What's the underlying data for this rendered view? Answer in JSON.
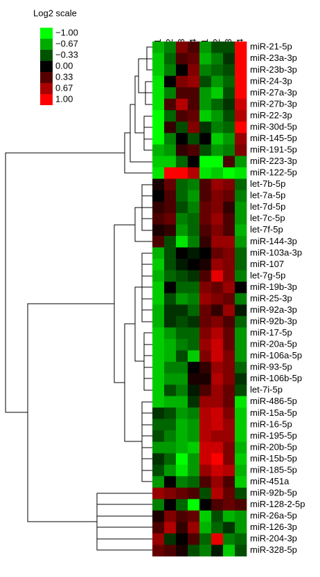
{
  "chart_data": {
    "type": "heatmap",
    "legend_title": "Log2 scale",
    "colorbar_ticks": [
      {
        "value": -1,
        "label": "−1.00"
      },
      {
        "value": -0.67,
        "label": "−0.67"
      },
      {
        "value": -0.33,
        "label": "−0.33"
      },
      {
        "value": 0,
        "label": "0.00"
      },
      {
        "value": 0.33,
        "label": "0.33"
      },
      {
        "value": 0.67,
        "label": "0.67"
      },
      {
        "value": 1,
        "label": "1.00"
      }
    ],
    "colors": {
      "negative": "#00ff00",
      "zero": "#000000",
      "positive": "#ff0000"
    },
    "columns": [
      "HC 1",
      "HC 2",
      "HC 3",
      "HC 4",
      "MS 1",
      "MS 2",
      "MS 3",
      "MS 4"
    ],
    "rows": [
      "miR-21-5p",
      "miR-23a-3p",
      "miR-23b-3p",
      "miR-24-3p",
      "miR-27a-3p",
      "miR-27b-3p",
      "miR-22-3p",
      "miR-30d-5p",
      "miR-145-5p",
      "miR-191-5p",
      "miR-223-3p",
      "miR-122-5p",
      "let-7b-5p",
      "let-7a-5p",
      "let-7d-5p",
      "let-7c-5p",
      "let-7f-5p",
      "miR-144-3p",
      "miR-103a-3p",
      "miR-107",
      "let-7g-5p",
      "miR-19b-3p",
      "miR-25-3p",
      "miR-92a-3p",
      "miR-92b-3p",
      "miR-17-5p",
      "miR-20a-5p",
      "miR-106a-5p",
      "miR-93-5p",
      "miR-106b-5p",
      "let-7i-5p",
      "miR-486-5p",
      "miR-15a-5p",
      "miR-16-5p",
      "miR-195-5p",
      "miR-20b-5p",
      "miR-15b-5p",
      "miR-185-5p",
      "miR-451a",
      "miR-92b-5p",
      "miR-128-2-5p",
      "miR-26a-5p",
      "miR-126-3p",
      "miR-204-3p",
      "miR-328-5p"
    ],
    "values": [
      [
        -0.7,
        -0.5,
        0.5,
        0.3,
        -0.6,
        -0.3,
        -0.3,
        1
      ],
      [
        -0.8,
        -0.4,
        0.3,
        0.4,
        -0.7,
        -0.5,
        -0.2,
        1
      ],
      [
        -0.8,
        -0.5,
        0,
        0.5,
        -0.5,
        -0.4,
        -0.3,
        1
      ],
      [
        -0.9,
        0,
        0.5,
        0.6,
        -0.3,
        -0.6,
        -0.4,
        1
      ],
      [
        -0.9,
        -0.5,
        0.3,
        0.3,
        -0.6,
        -0.8,
        -0.3,
        1
      ],
      [
        -0.9,
        0.3,
        0.7,
        0.3,
        -0.6,
        -0.4,
        -0.2,
        0.8
      ],
      [
        -1,
        -0.4,
        0.3,
        0.4,
        -0.8,
        -0.6,
        -0.3,
        0.7
      ],
      [
        -1,
        0.2,
        -0.3,
        0.5,
        -0.2,
        -0.5,
        -0.4,
        1
      ],
      [
        -1,
        -0.5,
        0,
        -0.3,
        0,
        -0.8,
        -0.6,
        0.6
      ],
      [
        -0.7,
        -0.6,
        0.2,
        0.3,
        -0.3,
        -0.6,
        -0.5,
        0.5
      ],
      [
        -0.8,
        -0.8,
        -0.4,
        0,
        -1,
        -1,
        0.3,
        -0.6
      ],
      [
        -0.9,
        1,
        1,
        0.7,
        -0.9,
        -0.8,
        -1,
        -0.9
      ],
      [
        0.1,
        0.4,
        -0.4,
        -0.5,
        0.3,
        0.6,
        0.5,
        -0.4
      ],
      [
        0,
        0.3,
        -0.4,
        -0.6,
        0.3,
        0.5,
        0.4,
        -0.5
      ],
      [
        0.2,
        0.3,
        -0.3,
        -0.5,
        0.4,
        0.5,
        0.2,
        -0.6
      ],
      [
        0.3,
        0.4,
        -0.5,
        -0.4,
        0.4,
        0.6,
        0.3,
        -0.6
      ],
      [
        0.1,
        0.2,
        -0.6,
        -0.4,
        0.3,
        0.5,
        0.3,
        -0.7
      ],
      [
        0.3,
        -0.3,
        -0.9,
        -0.5,
        0.2,
        0.6,
        0.6,
        -0.6
      ],
      [
        -0.7,
        -0.3,
        0,
        -0.1,
        0,
        0.4,
        0.5,
        -0.4
      ],
      [
        -0.8,
        -0.3,
        -0.1,
        0,
        0.1,
        0.6,
        0.5,
        -0.4
      ],
      [
        -0.7,
        -0.4,
        -0.3,
        -0.2,
        0.3,
        0.9,
        0.5,
        -0.5
      ],
      [
        -0.8,
        0,
        -0.4,
        -0.4,
        0.5,
        0.4,
        0.6,
        0
      ],
      [
        -0.8,
        -0.3,
        -0.6,
        -0.5,
        0.6,
        0.5,
        0.4,
        -0.5
      ],
      [
        -0.7,
        -0.2,
        -0.2,
        -0.4,
        0.4,
        0.2,
        0.6,
        -0.1
      ],
      [
        -0.7,
        -0.2,
        -0.3,
        -0.2,
        0.4,
        0.5,
        0.3,
        -0.4
      ],
      [
        -0.8,
        -0.6,
        -0.4,
        -0.4,
        0.5,
        0.7,
        0.4,
        -0.6
      ],
      [
        -0.8,
        -0.7,
        -0.5,
        -0.4,
        0.6,
        0.8,
        0.4,
        -0.6
      ],
      [
        -0.8,
        -0.7,
        -0.3,
        -0.8,
        0.5,
        0.8,
        0.5,
        -0.6
      ],
      [
        -0.8,
        -0.5,
        -0.5,
        0,
        0.2,
        0.6,
        0.5,
        -0.4
      ],
      [
        -0.8,
        -0.6,
        -0.6,
        0.1,
        0.1,
        0.7,
        0.5,
        -0.2
      ],
      [
        -0.8,
        -0.3,
        -0.5,
        -0.1,
        0.3,
        0.6,
        0.4,
        -0.3
      ],
      [
        -0.8,
        -0.7,
        -0.7,
        -0.2,
        0.6,
        0.6,
        0.4,
        -0.9
      ],
      [
        -0.2,
        -0.3,
        -0.6,
        -0.5,
        0.7,
        0.8,
        0.5,
        -0.8
      ],
      [
        -0.4,
        -0.4,
        -0.7,
        -0.6,
        0.7,
        0.8,
        0.6,
        -0.8
      ],
      [
        -0.3,
        -0.5,
        -0.7,
        -0.6,
        0.7,
        0.6,
        0.6,
        -0.8
      ],
      [
        -0.6,
        -0.6,
        -0.7,
        -0.8,
        0.8,
        0.8,
        0.5,
        -0.7
      ],
      [
        -0.2,
        -0.4,
        -1,
        -0.6,
        0.8,
        1,
        0.5,
        -0.8
      ],
      [
        -0.3,
        -0.6,
        -0.9,
        -0.6,
        0.6,
        0.8,
        0.7,
        -0.7
      ],
      [
        -0.6,
        0,
        -0.5,
        -0.4,
        0.3,
        0.6,
        0.3,
        -0.8
      ],
      [
        0.6,
        0.5,
        0.4,
        0.3,
        -0.3,
        0.7,
        0.4,
        -0.3
      ],
      [
        -0.5,
        0,
        -0.4,
        -1,
        0,
        0.3,
        0.4,
        0.3
      ],
      [
        0.1,
        0.5,
        0.3,
        0.4,
        -0.8,
        -0.3,
        -0.7,
        -0.6
      ],
      [
        0.3,
        0.7,
        0.2,
        0.6,
        -0.7,
        -0.4,
        -0.2,
        -0.6
      ],
      [
        0.6,
        -0.2,
        0,
        0.3,
        -0.4,
        0.9,
        -0.5,
        -0.4
      ],
      [
        0.4,
        0.3,
        0.1,
        -0.3,
        -0.5,
        -0.1,
        -0.8,
        -0.3
      ]
    ]
  }
}
